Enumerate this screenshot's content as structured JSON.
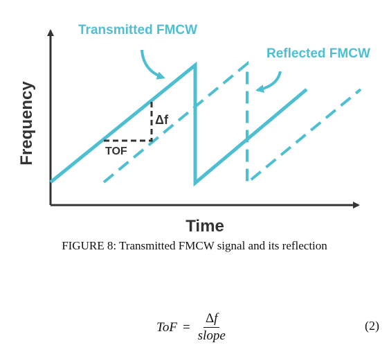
{
  "diagram": {
    "colors": {
      "signal": "#4dbfd1",
      "axis": "#333333",
      "tof_box": "#333333",
      "text": "#333333"
    },
    "labels": {
      "transmitted": "Transmitted FMCW",
      "reflected": "Reflected FMCW",
      "y_axis": "Frequency",
      "x_axis": "Time",
      "tof": "TOF",
      "delta_f": "Δf"
    }
  },
  "caption": "FIGURE 8: Transmitted FMCW signal and its reflection",
  "equation": {
    "lhs": "ToF",
    "equals": "=",
    "numerator_delta": "Δ",
    "numerator_var": "f",
    "denominator": "slope",
    "number": "(2)"
  }
}
